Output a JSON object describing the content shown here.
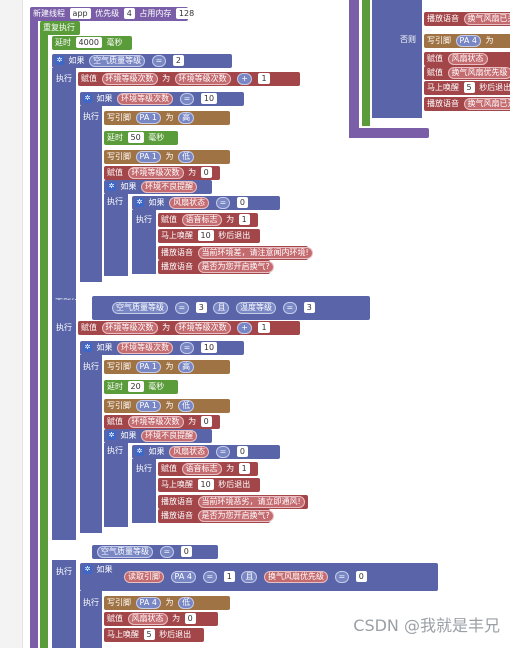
{
  "header": {
    "new_thread": "新建线程",
    "thread_name": "app",
    "priority_label": "优先级",
    "priority_value": "4",
    "memory_label": "占用内存",
    "memory_value": "128"
  },
  "repeat_label": "重复执行",
  "delay1": {
    "label": "延时",
    "value": "4000",
    "unit": "毫秒"
  },
  "if_label": "如果",
  "exec_label": "执行",
  "else_if_label": "否则如果",
  "else_label": "否则",
  "assign_label": "赋值",
  "as_label": "为",
  "write_pin_label": "写引脚",
  "read_pin_label": "读取引脚",
  "wake_label": "马上唤醒",
  "wake_unit": "秒后退出",
  "play_label": "播放语音",
  "and_label": "且",
  "high": "高",
  "low": "低",
  "vars": {
    "air": "空气质量等级",
    "env": "环境等级次数",
    "bad": "环境不良提醒",
    "fan": "风扇状态",
    "voice": "语音标志",
    "temp": "温度等级",
    "pa1": "PA 1",
    "pa4": "PA 4",
    "fan_prio": "换气风扇优先级"
  },
  "ops": {
    "eq": "=",
    "plus": "+"
  },
  "section1": {
    "air_value": "2",
    "plus_value": "1",
    "env_value": "10",
    "delay_value": "50",
    "delay_unit": "毫秒",
    "zero": "0",
    "voice_value": "1",
    "wake_value": "10",
    "speech1": "当前环境差，请注意闻内环境!",
    "speech2": "是否为您开启换气?"
  },
  "section2": {
    "air_value": "3",
    "temp_value": "3",
    "plus_value": "1",
    "env_value": "10",
    "delay_value": "20",
    "delay_unit": "毫秒",
    "zero": "0",
    "voice_value": "1",
    "wake_value": "10",
    "speech1": "当前环境恶劣，请立即通风!",
    "speech2": "是否为您开启换气?"
  },
  "section3": {
    "air_value": "0",
    "pin_value": "1",
    "prio_value": "0",
    "zero": "0",
    "wake_value": "5",
    "wake_unit": "秒后退出"
  },
  "right_panel": {
    "play_top": "播放语音",
    "play_top_text": "换气风扇已关",
    "otherwise": "否则",
    "write_pin": "写引脚",
    "pin": "PA 4",
    "as": "为",
    "assign1": "赋值",
    "fan_state": "风扇状态",
    "assign2": "赋值",
    "fan_prio": "换气风扇优先级",
    "wake": "马上唤醒",
    "wake_value": "5",
    "wake_unit": "秒后退出",
    "play2": "播放语音",
    "play2_text": "换气风扇已开"
  },
  "watermark": "CSDN @我就是丰兄"
}
